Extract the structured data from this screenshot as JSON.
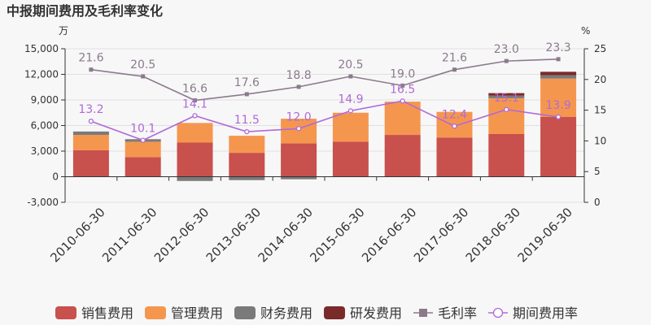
{
  "chart_data": {
    "type": "bar",
    "title": "中报期间费用及毛利率变化",
    "left_axis_unit": "万",
    "right_axis_unit": "%",
    "categories": [
      "2010-06-30",
      "2011-06-30",
      "2012-06-30",
      "2013-06-30",
      "2014-06-30",
      "2015-06-30",
      "2016-06-30",
      "2017-06-30",
      "2018-06-30",
      "2019-06-30"
    ],
    "ylim_left": [
      -3000,
      15000
    ],
    "yticks_left": [
      -3000,
      0,
      3000,
      6000,
      9000,
      12000,
      15000
    ],
    "yticks_left_labels": [
      "-3,000",
      "0",
      "3,000",
      "6,000",
      "9,000",
      "12,000",
      "15,000"
    ],
    "ylim_right": [
      0,
      25
    ],
    "yticks_right": [
      0,
      5,
      10,
      15,
      20,
      25
    ],
    "yticks_right_labels": [
      "0",
      "5",
      "10",
      "15",
      "20",
      "25"
    ],
    "bar_series": [
      {
        "name": "销售费用",
        "color": "#c8504d",
        "values": [
          3100,
          2300,
          4000,
          2800,
          3900,
          4100,
          4900,
          4600,
          5000,
          7000
        ]
      },
      {
        "name": "管理费用",
        "color": "#f5964f",
        "values": [
          1800,
          1800,
          2300,
          2000,
          2900,
          3400,
          3900,
          3000,
          4200,
          4500
        ]
      },
      {
        "name": "财务费用",
        "color": "#7a7a7a",
        "values": [
          400,
          300,
          -500,
          -400,
          -300,
          0,
          0,
          0,
          300,
          400
        ]
      },
      {
        "name": "研发费用",
        "color": "#7b2a2a",
        "values": [
          0,
          0,
          0,
          0,
          0,
          0,
          0,
          0,
          300,
          400
        ]
      }
    ],
    "line_series": [
      {
        "name": "毛利率",
        "color": "#8c7a8c",
        "marker": "square",
        "values": [
          21.6,
          20.5,
          16.6,
          17.6,
          18.8,
          20.5,
          19.0,
          21.6,
          23.0,
          23.3
        ],
        "labels": [
          "21.6",
          "20.5",
          "16.6",
          "17.6",
          "18.8",
          "20.5",
          "19.0",
          "21.6",
          "23.0",
          "23.3"
        ]
      },
      {
        "name": "期间费用率",
        "color": "#b06ad8",
        "marker": "circle",
        "values": [
          13.2,
          10.1,
          14.1,
          11.5,
          12.0,
          14.9,
          16.5,
          12.4,
          15.1,
          13.9
        ],
        "labels": [
          "13.2",
          "10.1",
          "14.1",
          "11.5",
          "12.0",
          "14.9",
          "16.5",
          "12.4",
          "15.1",
          "13.9"
        ]
      }
    ],
    "legend_position": "bottom",
    "grid": "horizontal"
  }
}
